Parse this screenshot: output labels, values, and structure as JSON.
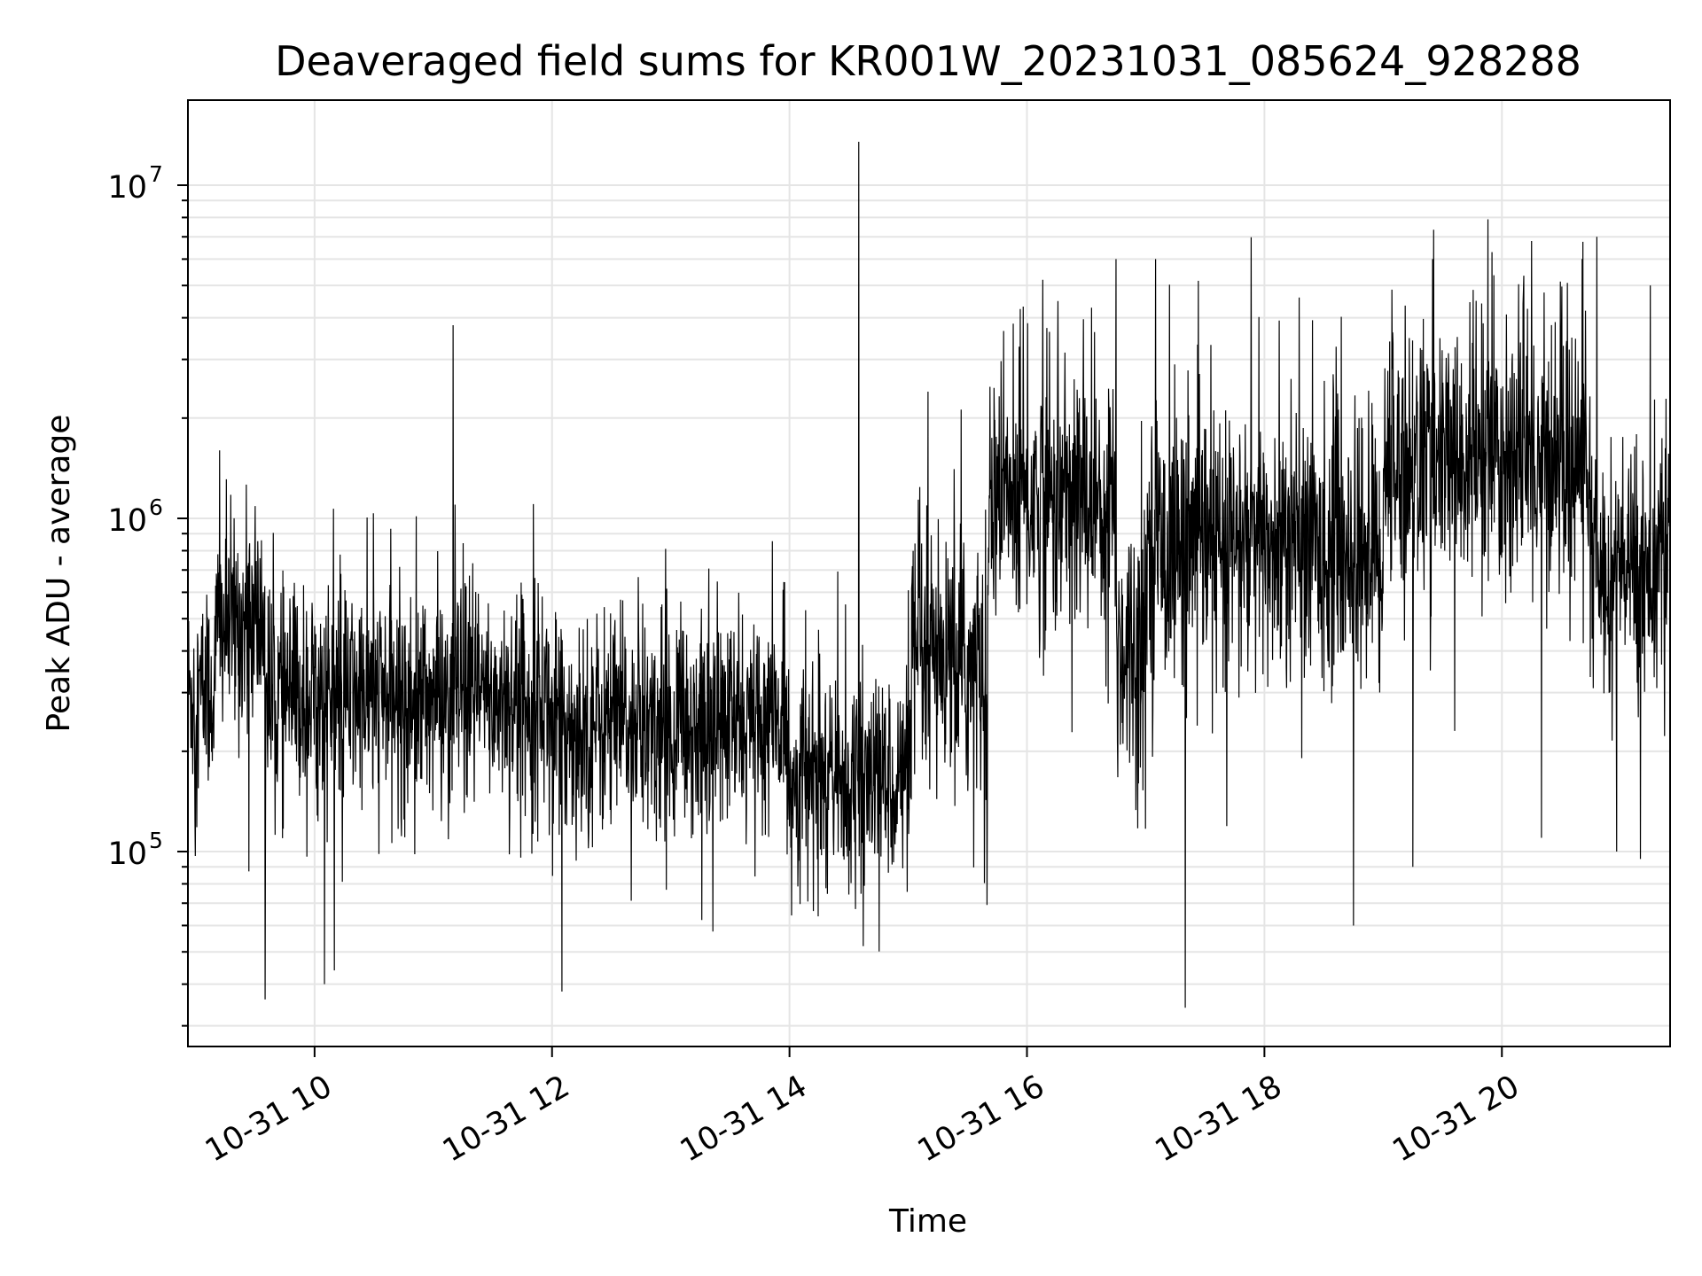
{
  "chart_data": {
    "type": "line",
    "title": "Deaveraged field sums for KR001W_20231031_085624_928288",
    "xlabel": "Time",
    "ylabel": "Peak ADU - average",
    "x_scale": "time",
    "y_scale": "log",
    "xlim": [
      "2023-10-31 08:56",
      "2023-10-31 21:25"
    ],
    "ylim": [
      26000,
      18000000
    ],
    "xticks": [
      {
        "value": "2023-10-31 10:00",
        "label": "10-31 10"
      },
      {
        "value": "2023-10-31 12:00",
        "label": "10-31 12"
      },
      {
        "value": "2023-10-31 14:00",
        "label": "10-31 14"
      },
      {
        "value": "2023-10-31 16:00",
        "label": "10-31 16"
      },
      {
        "value": "2023-10-31 18:00",
        "label": "10-31 18"
      },
      {
        "value": "2023-10-31 20:00",
        "label": "10-31 20"
      }
    ],
    "yticks": [
      {
        "value": 100000,
        "base": "10",
        "exp": "5"
      },
      {
        "value": 1000000,
        "base": "10",
        "exp": "6"
      },
      {
        "value": 10000000,
        "base": "10",
        "exp": "7"
      }
    ],
    "grid": true,
    "line_color": "#000000",
    "grid_color": "#e5e5e5",
    "series": [
      {
        "segments": [
          {
            "start": "2023-10-31 08:56",
            "end": "2023-10-31 09:10",
            "median": 300000,
            "spread": 0.28
          },
          {
            "start": "2023-10-31 09:10",
            "end": "2023-10-31 09:35",
            "median": 480000,
            "spread": 0.3
          },
          {
            "start": "2023-10-31 09:35",
            "end": "2023-10-31 12:00",
            "median": 290000,
            "spread": 0.3
          },
          {
            "start": "2023-10-31 12:00",
            "end": "2023-10-31 14:00",
            "median": 240000,
            "spread": 0.3
          },
          {
            "start": "2023-10-31 14:00",
            "end": "2023-10-31 15:00",
            "median": 165000,
            "spread": 0.28
          },
          {
            "start": "2023-10-31 15:00",
            "end": "2023-10-31 15:40",
            "median": 350000,
            "spread": 0.35
          },
          {
            "start": "2023-10-31 15:40",
            "end": "2023-10-31 16:45",
            "median": 1150000,
            "spread": 0.38
          },
          {
            "start": "2023-10-31 16:45",
            "end": "2023-10-31 17:00",
            "median": 420000,
            "spread": 0.38
          },
          {
            "start": "2023-10-31 17:00",
            "end": "2023-10-31 19:00",
            "median": 820000,
            "spread": 0.38
          },
          {
            "start": "2023-10-31 19:00",
            "end": "2023-10-31 20:45",
            "median": 1500000,
            "spread": 0.36
          },
          {
            "start": "2023-10-31 20:45",
            "end": "2023-10-31 21:25",
            "median": 700000,
            "spread": 0.32
          }
        ],
        "peaks": [
          {
            "x": "2023-10-31 09:12",
            "y": 1600000
          },
          {
            "x": "2023-10-31 09:35",
            "y": 36000
          },
          {
            "x": "2023-10-31 10:05",
            "y": 40000
          },
          {
            "x": "2023-10-31 10:10",
            "y": 44000
          },
          {
            "x": "2023-10-31 11:10",
            "y": 3800000
          },
          {
            "x": "2023-10-31 11:11",
            "y": 1100000
          },
          {
            "x": "2023-10-31 12:05",
            "y": 38000
          },
          {
            "x": "2023-10-31 14:35",
            "y": 13500000
          },
          {
            "x": "2023-10-31 15:10",
            "y": 2400000
          },
          {
            "x": "2023-10-31 16:08",
            "y": 5200000
          },
          {
            "x": "2023-10-31 16:45",
            "y": 6000000
          },
          {
            "x": "2023-10-31 17:05",
            "y": 6000000
          },
          {
            "x": "2023-10-31 17:20",
            "y": 34000
          },
          {
            "x": "2023-10-31 18:45",
            "y": 60000
          },
          {
            "x": "2023-10-31 19:15",
            "y": 90000
          },
          {
            "x": "2023-10-31 19:25",
            "y": 6000000
          },
          {
            "x": "2023-10-31 19:55",
            "y": 6300000
          },
          {
            "x": "2023-10-31 20:15",
            "y": 6800000
          },
          {
            "x": "2023-10-31 20:20",
            "y": 110000
          },
          {
            "x": "2023-10-31 20:48",
            "y": 7000000
          },
          {
            "x": "2023-10-31 20:58",
            "y": 100000
          },
          {
            "x": "2023-10-31 21:10",
            "y": 95000
          },
          {
            "x": "2023-10-31 21:15",
            "y": 5000000
          }
        ]
      }
    ]
  }
}
